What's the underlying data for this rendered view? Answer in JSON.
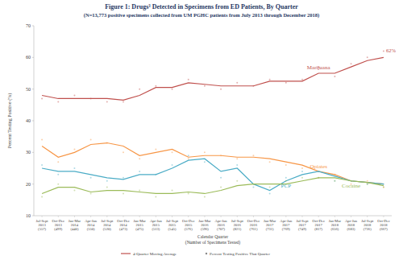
{
  "chart_data": {
    "type": "line",
    "title": "Figure 1: Drugs³ Detected in Specimens from ED Patients, By Quarter",
    "subtitle": "(N=13,773 positive specimens collected from UM PGHC patients from July 2013 through December 2018)",
    "x_label": "Calendar Quarter",
    "x_sublabel": "(Number of Specimens Tested)",
    "y_label": "Percent Testing Positive (%)",
    "categories": [
      "Jul-Sept 2013 (557)",
      "Oct-Dec 2013 (499)",
      "Jan-Mar 2014 (440)",
      "Apr-Jun 2014 (550)",
      "Jul-Sept 2014 (520)",
      "Oct-Dec 2014 (473)",
      "Jan-Mar 2015 (475)",
      "Apr-Jun 2015 (513)",
      "Jul-Sept 2015 (545)",
      "Oct-Dec 2015 (576)",
      "Jan-Mar 2016 (596)",
      "Apr-Jun 2016 (707)",
      "Jul-Sept 2016 (821)",
      "Oct-Dec 2016 (761)",
      "Jan-Mar 2017 (731)",
      "Apr-Jun 2017 (769)",
      "Jul-Sept 2017 (749)",
      "Oct-Dec 2017 (817)",
      "Jan-Mar 2018 (656)",
      "Apr-Jun 2018 (683)",
      "Jul-Sept 2018 (736)",
      "Oct-Dec 2018 (667)"
    ],
    "series": [
      {
        "name": "Marijuana",
        "color": "#c0504d",
        "marker": "circle",
        "line_style": "solid",
        "values": [
          48,
          47,
          47,
          47,
          47,
          46.5,
          48,
          50.5,
          50.5,
          52,
          51.5,
          51,
          51,
          51,
          52.5,
          52.5,
          52.5,
          55,
          55,
          57,
          59,
          60
        ],
        "quarterly": [
          47,
          46,
          48,
          47,
          46,
          46,
          50,
          51,
          50,
          53,
          51,
          50,
          52,
          51,
          53,
          52,
          53,
          57,
          54,
          58,
          60,
          62
        ],
        "end_label": "62%"
      },
      {
        "name": "Opiates",
        "color": "#f79646",
        "marker": "circle",
        "line_style": "solid",
        "values": [
          32,
          28.5,
          30,
          32.5,
          33,
          32,
          29,
          30,
          31,
          28.5,
          29,
          29,
          28.5,
          28.5,
          28,
          27,
          26,
          24,
          23,
          21,
          20.5,
          20
        ],
        "quarterly": [
          34,
          27,
          31,
          34,
          33,
          30,
          28,
          31,
          30,
          28,
          30,
          29,
          28,
          29,
          27,
          26,
          25,
          22,
          23,
          20,
          21,
          19
        ]
      },
      {
        "name": "PCP",
        "color": "#4bacc6",
        "marker": "circle",
        "line_style": "solid",
        "values": [
          25,
          24,
          24,
          23,
          22,
          21.5,
          23,
          23,
          25,
          27.5,
          28,
          24,
          25,
          20,
          18,
          21,
          23,
          24,
          22.5,
          21,
          20.5,
          20
        ],
        "quarterly": [
          26,
          23,
          25,
          22,
          21,
          22,
          24,
          23,
          26,
          29,
          27,
          22,
          26,
          19,
          17,
          22,
          24,
          24,
          21,
          21,
          20,
          20
        ]
      },
      {
        "name": "Cocaine",
        "color": "#9bbb59",
        "marker": "circle",
        "line_style": "solid",
        "values": [
          17,
          19,
          19,
          17.5,
          18,
          18,
          17.5,
          17,
          17,
          17.5,
          17,
          18,
          19.5,
          20,
          20,
          20,
          21,
          22,
          22,
          21,
          20.5,
          19.5
        ],
        "quarterly": [
          16,
          20,
          18,
          17,
          19,
          17,
          18,
          16,
          18,
          17,
          16,
          19,
          21,
          20,
          19,
          21,
          22,
          22,
          21,
          21,
          20,
          19
        ]
      }
    ],
    "legend_labels": [
      "4-Quarter Moving Average",
      "Percent Testing Positive That Quarter"
    ],
    "legend": "bottom",
    "ylim": [
      10,
      70
    ],
    "yticks": [
      10,
      20,
      30,
      40,
      50,
      60,
      70
    ],
    "grid": false
  }
}
